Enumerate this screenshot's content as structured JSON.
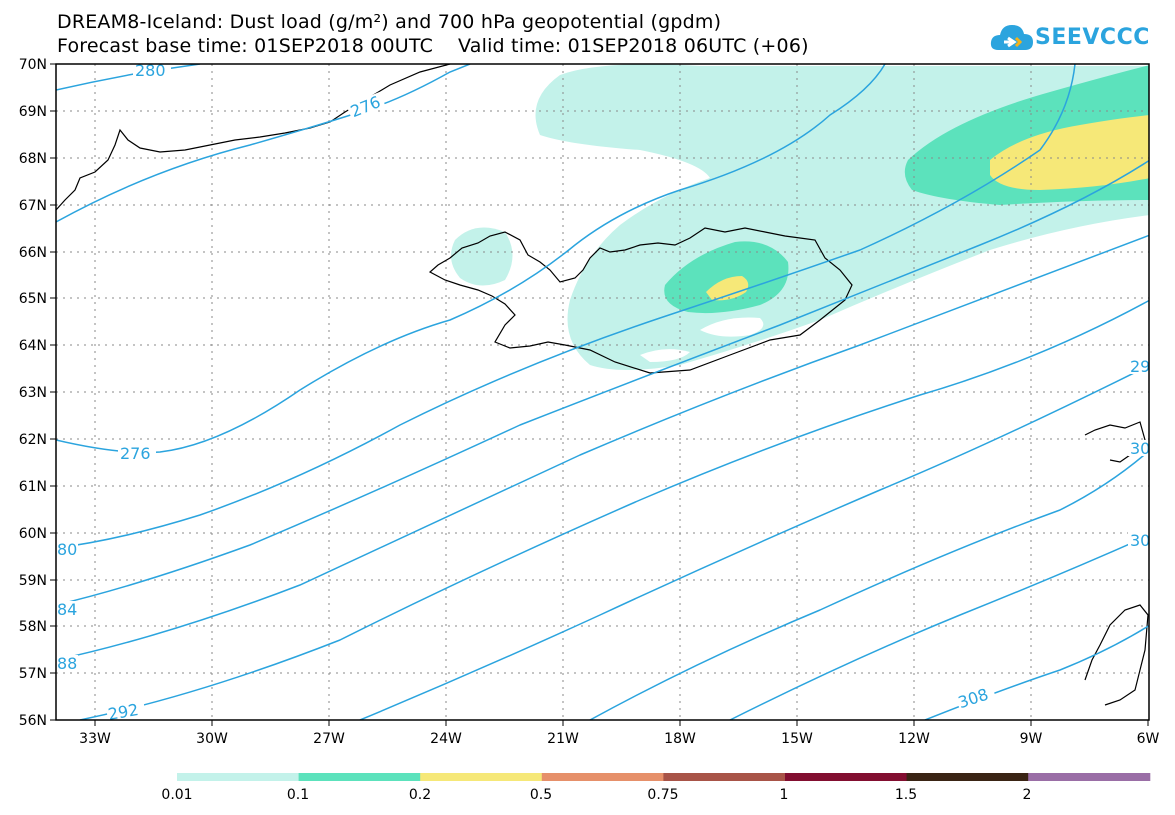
{
  "title": {
    "line1": "DREAM8-Iceland: Dust load (g/m²) and 700 hPa geopotential (gpdm)",
    "line2": "Forecast base time: 01SEP2018 00UTC    Valid time: 01SEP2018 06UTC (+06)"
  },
  "logo": {
    "text": "SEEVCCC",
    "icon": "cloud-icon"
  },
  "lat_labels": [
    "70N",
    "69N",
    "68N",
    "67N",
    "66N",
    "65N",
    "64N",
    "63N",
    "62N",
    "61N",
    "60N",
    "59N",
    "58N",
    "57N",
    "56N"
  ],
  "lon_labels": [
    "33W",
    "30W",
    "27W",
    "24W",
    "21W",
    "18W",
    "15W",
    "12W",
    "9W",
    "6W"
  ],
  "contour_labels": [
    "280",
    "276",
    "276",
    "80",
    "84",
    "88",
    "292",
    "308",
    "29",
    "30",
    "30"
  ],
  "colorbar": {
    "colors": [
      "#c3f2ea",
      "#5ce2bc",
      "#f6e878",
      "#e6906a",
      "#a85448",
      "#820e30",
      "#3a2414",
      "#9a6ea6"
    ],
    "labels": [
      "0.01",
      "0.1",
      "0.2",
      "0.5",
      "0.75",
      "1",
      "1.5",
      "2"
    ]
  },
  "colors": {
    "contour": "#2ba4de",
    "coast": "#000000",
    "grid": "#8a8a8a"
  }
}
